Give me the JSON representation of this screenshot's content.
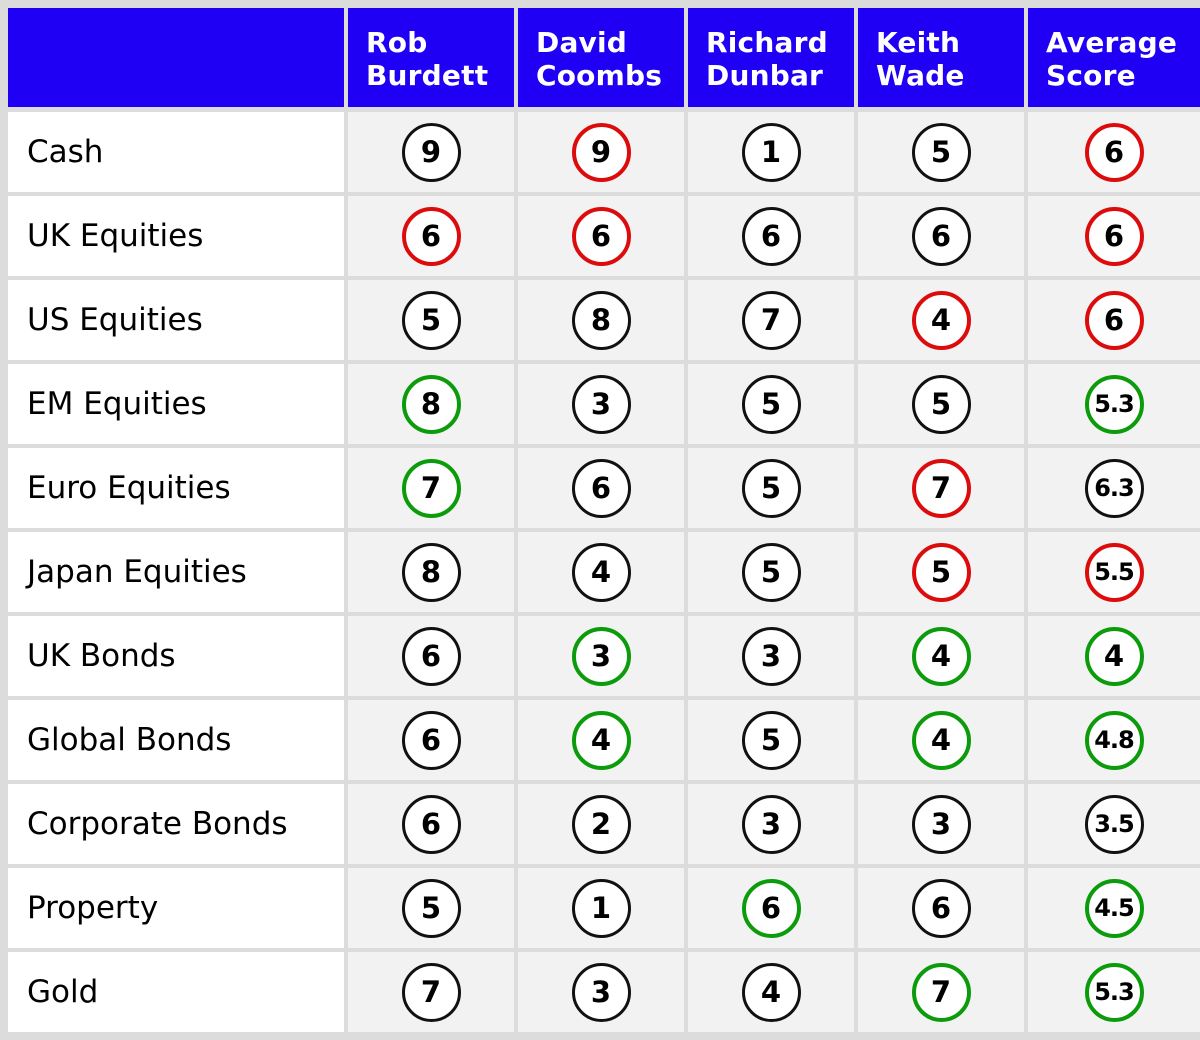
{
  "chart_data": {
    "type": "table",
    "columns": [
      "Rob Burdett",
      "David Coombs",
      "Richard Dunbar",
      "Keith Wade",
      "Average Score"
    ],
    "column_headers": [
      [
        "Rob",
        "Burdett"
      ],
      [
        "David",
        "Coombs"
      ],
      [
        "Richard",
        "Dunbar"
      ],
      [
        "Keith",
        "Wade"
      ],
      [
        "Average",
        "Score"
      ]
    ],
    "rows": [
      {
        "label": "Cash",
        "values": [
          "9",
          "9",
          "1",
          "5",
          "6"
        ],
        "tones": [
          "neutral",
          "red",
          "neutral",
          "neutral",
          "red"
        ]
      },
      {
        "label": "UK Equities",
        "values": [
          "6",
          "6",
          "6",
          "6",
          "6"
        ],
        "tones": [
          "red",
          "red",
          "neutral",
          "neutral",
          "red"
        ]
      },
      {
        "label": "US Equities",
        "values": [
          "5",
          "8",
          "7",
          "4",
          "6"
        ],
        "tones": [
          "neutral",
          "neutral",
          "neutral",
          "red",
          "red"
        ]
      },
      {
        "label": "EM Equities",
        "values": [
          "8",
          "3",
          "5",
          "5",
          "5.3"
        ],
        "tones": [
          "green",
          "neutral",
          "neutral",
          "neutral",
          "green"
        ]
      },
      {
        "label": "Euro Equities",
        "values": [
          "7",
          "6",
          "5",
          "7",
          "6.3"
        ],
        "tones": [
          "green",
          "neutral",
          "neutral",
          "red",
          "neutral"
        ]
      },
      {
        "label": "Japan Equities",
        "values": [
          "8",
          "4",
          "5",
          "5",
          "5.5"
        ],
        "tones": [
          "neutral",
          "neutral",
          "neutral",
          "red",
          "red"
        ]
      },
      {
        "label": "UK Bonds",
        "values": [
          "6",
          "3",
          "3",
          "4",
          "4"
        ],
        "tones": [
          "neutral",
          "green",
          "neutral",
          "green",
          "green"
        ]
      },
      {
        "label": "Global Bonds",
        "values": [
          "6",
          "4",
          "5",
          "4",
          "4.8"
        ],
        "tones": [
          "neutral",
          "green",
          "neutral",
          "green",
          "green"
        ]
      },
      {
        "label": "Corporate Bonds",
        "values": [
          "6",
          "2",
          "3",
          "3",
          "3.5"
        ],
        "tones": [
          "neutral",
          "neutral",
          "neutral",
          "neutral",
          "neutral"
        ]
      },
      {
        "label": "Property",
        "values": [
          "5",
          "1",
          "6",
          "6",
          "4.5"
        ],
        "tones": [
          "neutral",
          "neutral",
          "green",
          "neutral",
          "green"
        ]
      },
      {
        "label": "Gold",
        "values": [
          "7",
          "3",
          "4",
          "7",
          "5.3"
        ],
        "tones": [
          "neutral",
          "neutral",
          "neutral",
          "green",
          "green"
        ]
      }
    ],
    "colors": {
      "header_background": "#1f00f5",
      "header_text": "#ffffff",
      "red": "#dd0c0c",
      "green": "#0b9b0b",
      "neutral": "#111111",
      "grid": "#dcdcdc"
    }
  }
}
